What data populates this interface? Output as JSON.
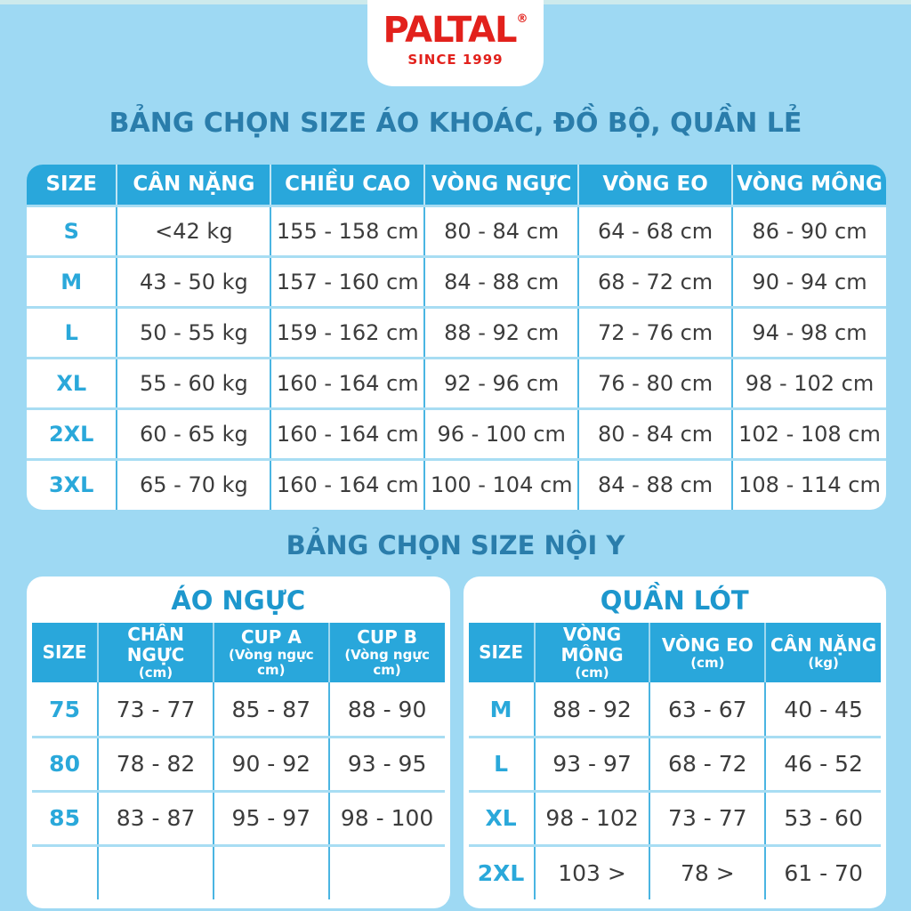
{
  "logo": {
    "brand": "PALTAL",
    "registered": "®",
    "tagline": "SINCE 1999"
  },
  "titles": {
    "main": "BẢNG CHỌN SIZE ÁO KHOÁC, ĐỒ BỘ, QUẦN LẺ",
    "lingerie": "BẢNG CHỌN SIZE NỘI Y"
  },
  "colors": {
    "background": "#9ed9f3",
    "header_cyan": "#29a7db",
    "title_teal": "#2a7dab",
    "card_title_blue": "#1d97cd",
    "size_text_cyan": "#2aa8da",
    "brand_red": "#e2211c",
    "data_text": "#3c3c3c"
  },
  "main_table": {
    "columns": [
      "SIZE",
      "CÂN NẶNG",
      "CHIỀU CAO",
      "VÒNG NGỰC",
      "VÒNG EO",
      "VÒNG MÔNG"
    ],
    "rows": [
      {
        "size": "S",
        "cells": [
          "<42 kg",
          "155 - 158 cm",
          "80 - 84 cm",
          "64 - 68 cm",
          "86 - 90 cm"
        ]
      },
      {
        "size": "M",
        "cells": [
          "43 - 50 kg",
          "157 - 160 cm",
          "84 - 88 cm",
          "68 - 72 cm",
          "90 - 94 cm"
        ]
      },
      {
        "size": "L",
        "cells": [
          "50 - 55 kg",
          "159 - 162 cm",
          "88 - 92 cm",
          "72 - 76 cm",
          "94 - 98 cm"
        ]
      },
      {
        "size": "XL",
        "cells": [
          "55 - 60 kg",
          "160 - 164 cm",
          "92 - 96 cm",
          "76 - 80 cm",
          "98 - 102 cm"
        ]
      },
      {
        "size": "2XL",
        "cells": [
          "60 - 65 kg",
          "160 - 164 cm",
          "96 - 100 cm",
          "80 - 84 cm",
          "102 - 108 cm"
        ]
      },
      {
        "size": "3XL",
        "cells": [
          "65 - 70 kg",
          "160 - 164 cm",
          "100 - 104 cm",
          "84 - 88 cm",
          "108 - 114 cm"
        ]
      }
    ]
  },
  "bra_table": {
    "title": "ÁO NGỰC",
    "columns": [
      {
        "label": "SIZE",
        "sub": ""
      },
      {
        "label": "CHÂN NGỰC",
        "sub": "(cm)"
      },
      {
        "label": "CUP A",
        "sub": "(Vòng ngực cm)"
      },
      {
        "label": "CUP B",
        "sub": "(Vòng ngực cm)"
      }
    ],
    "rows": [
      {
        "size": "75",
        "cells": [
          "73 - 77",
          "85 - 87",
          "88 - 90"
        ]
      },
      {
        "size": "80",
        "cells": [
          "78 - 82",
          "90 - 92",
          "93 - 95"
        ]
      },
      {
        "size": "85",
        "cells": [
          "83 - 87",
          "95 - 97",
          "98 - 100"
        ]
      },
      {
        "size": "",
        "cells": [
          "",
          "",
          ""
        ]
      }
    ]
  },
  "panty_table": {
    "title": "QUẦN LÓT",
    "columns": [
      {
        "label": "SIZE",
        "sub": ""
      },
      {
        "label": "VÒNG MÔNG",
        "sub": "(cm)"
      },
      {
        "label": "VÒNG EO",
        "sub": "(cm)"
      },
      {
        "label": "CÂN NẶNG",
        "sub": "(kg)"
      }
    ],
    "rows": [
      {
        "size": "M",
        "cells": [
          "88 - 92",
          "63 - 67",
          "40 - 45"
        ]
      },
      {
        "size": "L",
        "cells": [
          "93 - 97",
          "68 - 72",
          "46 - 52"
        ]
      },
      {
        "size": "XL",
        "cells": [
          "98 - 102",
          "73 - 77",
          "53 - 60"
        ]
      },
      {
        "size": "2XL",
        "cells": [
          "103 >",
          "78 >",
          "61 - 70"
        ]
      }
    ]
  }
}
